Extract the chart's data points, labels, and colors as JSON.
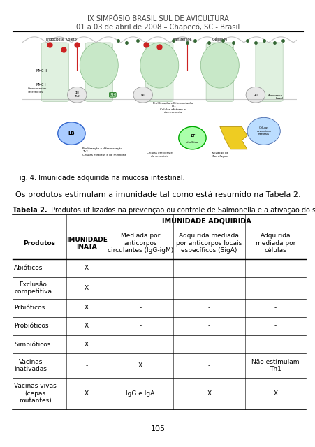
{
  "header_line1": "IX SIMPÓSIO BRASIL SUL DE AVICULTURA",
  "header_line2": "01 a 03 de abril de 2008 – Chapecó, SC - Brasil",
  "fig_caption": "Fig. 4. Imunidade adquirida na mucosa intestinal.",
  "body_text": "Os produtos estimulam a imunidade tal como está resumido na Tabela 2.",
  "table_caption_bold": "Tabela 2.",
  "table_caption_rest": " Produtos utilizados na prevenção ou controle de Salmonella e a ativação do sistema imune.",
  "page_number": "105",
  "col_headers": [
    "Produtos",
    "IMUNIDADE\nINATA",
    "Mediada por\nanticorpos\ncirculantes (IgG-igM)",
    "Adquirida mediada\npor anticorpos locais\nespecíficos (SigA)",
    "Adquirida\nmediada por\ncélulas"
  ],
  "rows": [
    [
      "Abióticos",
      "X",
      "-",
      "-",
      "-"
    ],
    [
      "Exclusão\ncompetitiva",
      "X",
      "-",
      "-",
      "-"
    ],
    [
      "Prbióticos",
      "X",
      "-",
      "-",
      "-"
    ],
    [
      "Probióticos",
      "X",
      "-",
      "-",
      "-"
    ],
    [
      "Simbióticos",
      "X",
      "-",
      "-",
      "-"
    ],
    [
      "Vacinas\ninativadas",
      "-",
      "X",
      "-",
      "Não estimulam\nTh1"
    ],
    [
      "Vacinas vivas\n(cepas\nmutantes)",
      "X",
      "IgG e IgA",
      "X",
      "X"
    ]
  ],
  "bg_color": "#ffffff",
  "text_color": "#000000",
  "header_text_color": "#444444",
  "line_color": "#000000",
  "diagram_bg": "#ffffff"
}
